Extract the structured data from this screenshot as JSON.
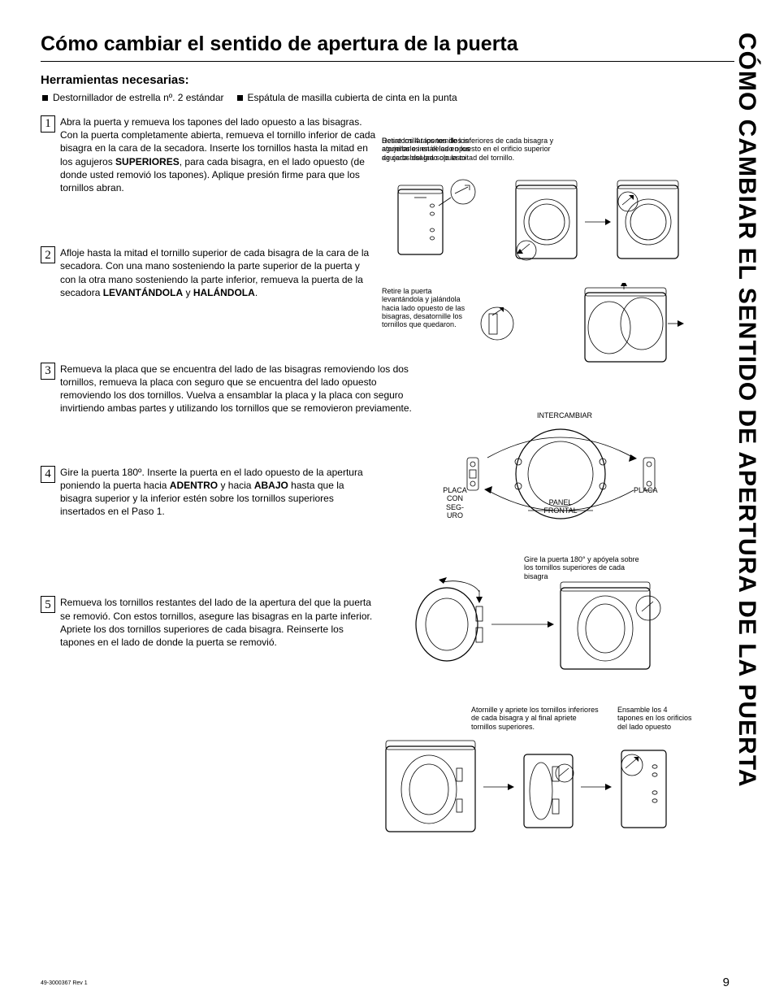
{
  "main_title": "Cómo cambiar el sentido de apertura de la puerta",
  "side_title": "CÓMO CAMBIAR EL SENTIDO DE APERTURA DE LA PUERTA",
  "tools_heading": "Herramientas necesarias:",
  "tools": [
    "Destornillador de estrella nº. 2 estándar",
    "Espátula de masilla cubierta de cinta en la punta"
  ],
  "steps": [
    {
      "num": "1",
      "html": "Abra la puerta y remueva los tapones del lado opuesto a las bisagras. Con la puerta completamente abierta, remueva el tornillo inferior de cada bisagra en la cara de la secadora. Inserte los tornillos hasta la mitad en los agujeros <b>SUPERIORES</b>, para cada bisagra, en el lado opuesto (de donde usted removió los tapones). Aplique presión firme para que los tornillos abran."
    },
    {
      "num": "2",
      "html": "Afloje hasta la mitad el tornillo superior de cada bisagra de la cara de la secadora. Con una mano sosteniendo la parte superior de la puerta y con la otra mano sosteniendo la parte inferior, remueva la puerta de la secadora <b>LEVANTÁNDOLA</b> y <b>HALÁNDOLA</b>."
    },
    {
      "num": "3",
      "html": "Remueva la placa que se encuentra del lado de las bisagras removiendo los dos tornillos, remueva la placa con seguro que se encuentra del lado opuesto removiendo los dos tornillos. Vuelva a ensamblar la placa y la placa con seguro invirtiendo ambas partes y utilizando los tornillos que se removieron previamente."
    },
    {
      "num": "4",
      "html": "Gire la puerta 180º. Inserte la puerta en el lado opuesto de la apertura poniendo la puerta hacia <b>ADENTRO</b> y hacia <b>ABAJO</b> hasta que la bisagra superior y la inferior estén sobre los tornillos superiores insertados en el Paso 1."
    },
    {
      "num": "5",
      "html": "Remueva los tornillos restantes del lado de la apertura del que la puerta se removió. Con estos tornillos, asegure las bisagras en la parte inferior. Apriete los dos tornillos superiores de cada bisagra. Reinserte los tapones en el lado de donde la puerta se removió."
    }
  ],
  "captions": {
    "c1a": "Retire los 4 tapones de los agujeros e instálelos en los agujeros del lado opuesto",
    "c1b": "Desatornillar los tornillos inferiores de cada bisagra y atornillarlos en el lado opuesto en el orificio superior de cada bisagra solo la mitad del tornillo.",
    "c2": "Retire la puerta levantándola y jalándola hacia lado opuesto de las bisagras, desatornille los tornillos que quedaron.",
    "c3_swap": "INTERCAMBIAR",
    "c3_left": "PLACA CON SEG-URO",
    "c3_mid": "PANEL FRONTAL",
    "c3_right": "PLACA",
    "c4": "Gire la puerta 180° y apóyela sobre los tornillos superiores de cada bisagra",
    "c5a": "Atornille y apriete los tornillos inferiores de cada bisagra y al final apriete tornillos superiores.",
    "c5b": "Ensamble los 4 tapones en los orificios del lado opuesto"
  },
  "footer_left": "49-3000367 Rev 1",
  "page_number": "9",
  "colors": {
    "text": "#000000",
    "background": "#ffffff",
    "rule": "#000000"
  },
  "typography": {
    "main_title_pt": 25,
    "side_title_pt": 30,
    "tools_heading_pt": 15,
    "body_pt": 12,
    "caption_pt": 9,
    "footer_pt": 7,
    "pagenum_pt": 15
  }
}
